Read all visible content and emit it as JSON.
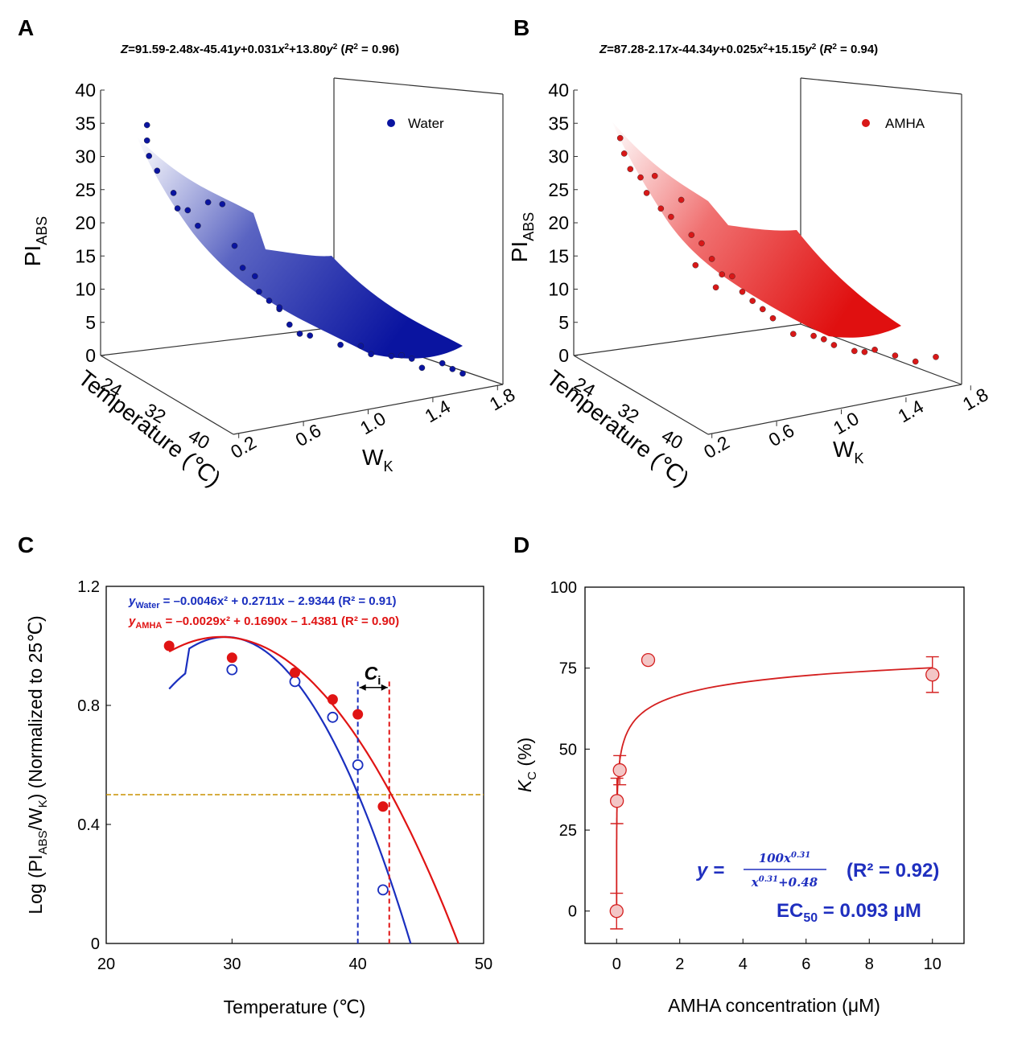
{
  "panels": {
    "A": "A",
    "B": "B",
    "C": "C",
    "D": "D"
  },
  "chart_data": [
    {
      "id": "A",
      "type": "scatter3d",
      "equation": {
        "z": "Z",
        "p1": "=91.59-2.48",
        "x": "x",
        "p2": "-45.41",
        "y": "y",
        "p3": "+0.031",
        "x2": "x",
        "sup2a": "2",
        "p4": "+13.80",
        "y2": "y",
        "sup2b": "2",
        "p5": " (",
        "r": "R",
        "sup2c": "2",
        "p6": " = 0.96)"
      },
      "zlabel_main": "PI",
      "zlabel_sub": "ABS",
      "ylabel": "Temperature (℃)",
      "xlabel_main": "W",
      "xlabel_sub": "K",
      "z_ticks": [
        "40",
        "35",
        "30",
        "25",
        "20",
        "15",
        "10",
        "5",
        "0"
      ],
      "t_ticks": [
        "24",
        "32",
        "40"
      ],
      "w_ticks": [
        "0.2",
        "0.6",
        "1.0",
        "1.4",
        "1.8"
      ],
      "legend": "Water",
      "color": "#0a14a0",
      "points_wz": [
        [
          0.25,
          37
        ],
        [
          0.25,
          35
        ],
        [
          0.26,
          33
        ],
        [
          0.3,
          30
        ],
        [
          0.38,
          27
        ],
        [
          0.4,
          25
        ],
        [
          0.45,
          24
        ],
        [
          0.5,
          22
        ],
        [
          0.55,
          26
        ],
        [
          0.62,
          25
        ],
        [
          0.68,
          19
        ],
        [
          0.72,
          16
        ],
        [
          0.78,
          14
        ],
        [
          0.8,
          12
        ],
        [
          0.85,
          11
        ],
        [
          0.9,
          9
        ],
        [
          0.95,
          7
        ],
        [
          1.0,
          6
        ],
        [
          1.05,
          5
        ],
        [
          1.2,
          4
        ],
        [
          1.35,
          3
        ],
        [
          1.45,
          2
        ],
        [
          1.55,
          2
        ],
        [
          1.6,
          1
        ],
        [
          1.7,
          1
        ],
        [
          1.75,
          0.5
        ],
        [
          1.8,
          0.2
        ],
        [
          1.3,
          3.5
        ],
        [
          1.5,
          2.5
        ],
        [
          0.9,
          10
        ]
      ]
    },
    {
      "id": "B",
      "type": "scatter3d",
      "equation": {
        "z": "Z",
        "p1": "=87.28-2.17",
        "x": "x",
        "p2": "-44.34",
        "y": "y",
        "p3": "+0.025",
        "x2": "x",
        "sup2a": "2",
        "p4": "+15.15",
        "y2": "y",
        "sup2b": "2",
        "p5": " (",
        "r": "R",
        "sup2c": "2",
        "p6": " = 0.94)"
      },
      "zlabel_main": "PI",
      "zlabel_sub": "ABS",
      "ylabel": "Temperature (℃)",
      "xlabel_main": "W",
      "xlabel_sub": "K",
      "z_ticks": [
        "40",
        "35",
        "30",
        "25",
        "20",
        "15",
        "10",
        "5",
        "0"
      ],
      "t_ticks": [
        "24",
        "32",
        "40"
      ],
      "w_ticks": [
        "0.2",
        "0.6",
        "1.0",
        "1.4",
        "1.8"
      ],
      "legend": "AMHA",
      "color": "#d81818",
      "points_wz": [
        [
          0.25,
          35
        ],
        [
          0.27,
          33
        ],
        [
          0.3,
          31
        ],
        [
          0.35,
          29
        ],
        [
          0.38,
          27
        ],
        [
          0.45,
          25
        ],
        [
          0.5,
          23
        ],
        [
          0.55,
          26
        ],
        [
          0.6,
          21
        ],
        [
          0.65,
          19
        ],
        [
          0.7,
          17
        ],
        [
          0.75,
          15
        ],
        [
          0.8,
          14
        ],
        [
          0.85,
          12
        ],
        [
          0.9,
          11
        ],
        [
          0.95,
          9
        ],
        [
          1.0,
          8
        ],
        [
          1.1,
          6
        ],
        [
          1.2,
          5
        ],
        [
          1.3,
          4
        ],
        [
          1.4,
          3.5
        ],
        [
          1.5,
          3
        ],
        [
          1.6,
          2.5
        ],
        [
          1.7,
          2
        ],
        [
          1.8,
          2
        ],
        [
          0.62,
          16
        ],
        [
          0.72,
          13
        ],
        [
          1.25,
          4.5
        ],
        [
          1.45,
          3
        ],
        [
          0.42,
          30
        ]
      ]
    },
    {
      "id": "C",
      "type": "scatter+line",
      "xlabel": "Temperature (℃)",
      "ylabel_parts": {
        "a": "Log (PI",
        "b": "ABS",
        "c": "/W",
        "d": "K",
        "e": ") (Normalized  to 25℃)"
      },
      "xlim": [
        20,
        50
      ],
      "ylim": [
        0,
        1.2
      ],
      "x_ticks": [
        "20",
        "30",
        "40",
        "50"
      ],
      "y_ticks": [
        "0",
        "0.4",
        "0.8",
        "1.2"
      ],
      "eq_water": {
        "y": "y",
        "sub": "Water",
        "rest": " = –0.0046x² + 0.2711x – 2.9344 (R² = 0.91)"
      },
      "eq_amha": {
        "y": "y",
        "sub": "AMHA",
        "rest": " = –0.0029x² + 0.1690x – 1.4381 (R² = 0.90)"
      },
      "ci_label": "C",
      "ci_sub": "i",
      "threshold": 0.5,
      "ci_water_x": 40.0,
      "ci_amha_x": 42.5,
      "series": [
        {
          "name": "Water",
          "color": "#1a2fbf",
          "marker": "open",
          "x": [
            30,
            35,
            38,
            40,
            42
          ],
          "y": [
            0.92,
            0.88,
            0.76,
            0.6,
            0.18
          ],
          "curve_x": [
            25,
            44.2
          ]
        },
        {
          "name": "AMHA",
          "color": "#e01414",
          "marker": "filled",
          "x": [
            25,
            30,
            35,
            38,
            40,
            42
          ],
          "y": [
            1.0,
            0.96,
            0.91,
            0.82,
            0.77,
            0.46
          ],
          "curve_x": [
            25,
            48
          ]
        }
      ]
    },
    {
      "id": "D",
      "type": "scatter+line",
      "xlabel": "AMHA concentration (μM)",
      "ylabel_main": "K",
      "ylabel_sub": "C",
      "ylabel_unit": " (%)",
      "xlim": [
        -1,
        11
      ],
      "ylim": [
        -10,
        100
      ],
      "x_ticks": [
        "0",
        "2",
        "4",
        "6",
        "8",
        "10"
      ],
      "y_ticks": [
        "0",
        "25",
        "50",
        "75",
        "100"
      ],
      "eq_prefix": "y = ",
      "eq_num": "100x",
      "eq_num_exp": "0.31",
      "eq_den": "x",
      "eq_den_exp": "0.31",
      "eq_den_rest": "+0.48",
      "eq_r2": "(R² = 0.92)",
      "ec50_main": "EC",
      "ec50_sub": "50",
      "ec50_rest": " = 0.093 μM",
      "color": "#d42020",
      "fill": "#f3c6c6",
      "points": [
        {
          "x": 0,
          "y": 0,
          "err": 5.5
        },
        {
          "x": 0.01,
          "y": 34,
          "err": 7
        },
        {
          "x": 0.1,
          "y": 43.5,
          "err": 4.5
        },
        {
          "x": 1,
          "y": 77.5,
          "err": 0
        },
        {
          "x": 10,
          "y": 73,
          "err": 5.5
        }
      ]
    }
  ]
}
